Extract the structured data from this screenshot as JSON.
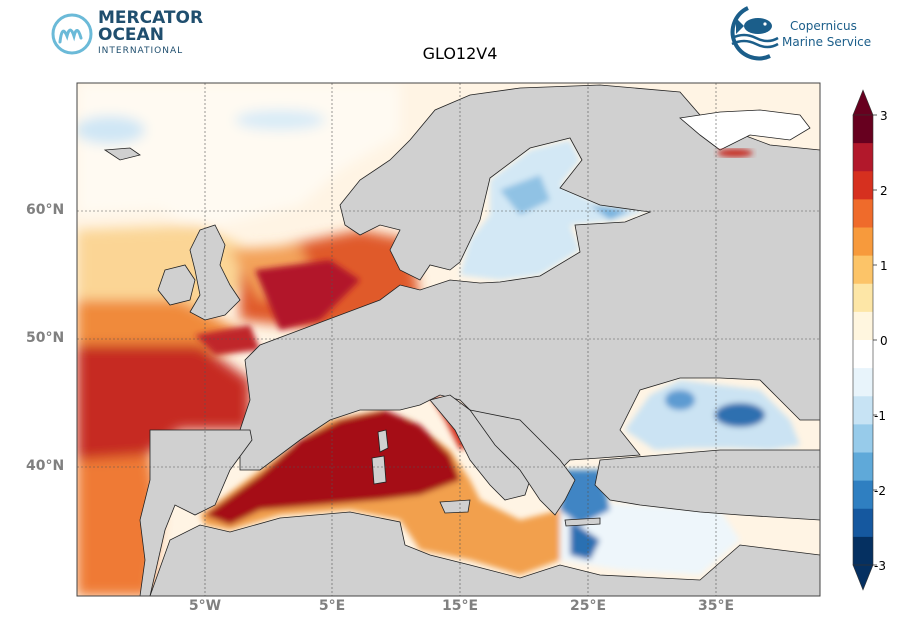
{
  "title": "GLO12V4",
  "logos": {
    "left_line1": "MERCATOR",
    "left_line2": "OCEAN",
    "left_line3": "INTERNATIONAL",
    "right_line1": "Copernicus",
    "right_line2": "Marine Service"
  },
  "axes": {
    "lat_labels": [
      "60°N",
      "50°N",
      "40°N"
    ],
    "lon_labels": [
      "5°W",
      "5°E",
      "15°E",
      "25°E",
      "35°E"
    ]
  },
  "colorbar": {
    "ticks": [
      "3",
      "2",
      "1",
      "0",
      "-1",
      "-2",
      "-3"
    ],
    "colors": [
      "#67001f",
      "#b2182b",
      "#d6301f",
      "#ef6b2b",
      "#f79a3c",
      "#fcc468",
      "#fde6a6",
      "#fff6df",
      "#ffffff",
      "#e8f4fb",
      "#c7e3f4",
      "#97cbea",
      "#5fa9d9",
      "#2f7fc1",
      "#15589f",
      "#053061"
    ]
  }
}
